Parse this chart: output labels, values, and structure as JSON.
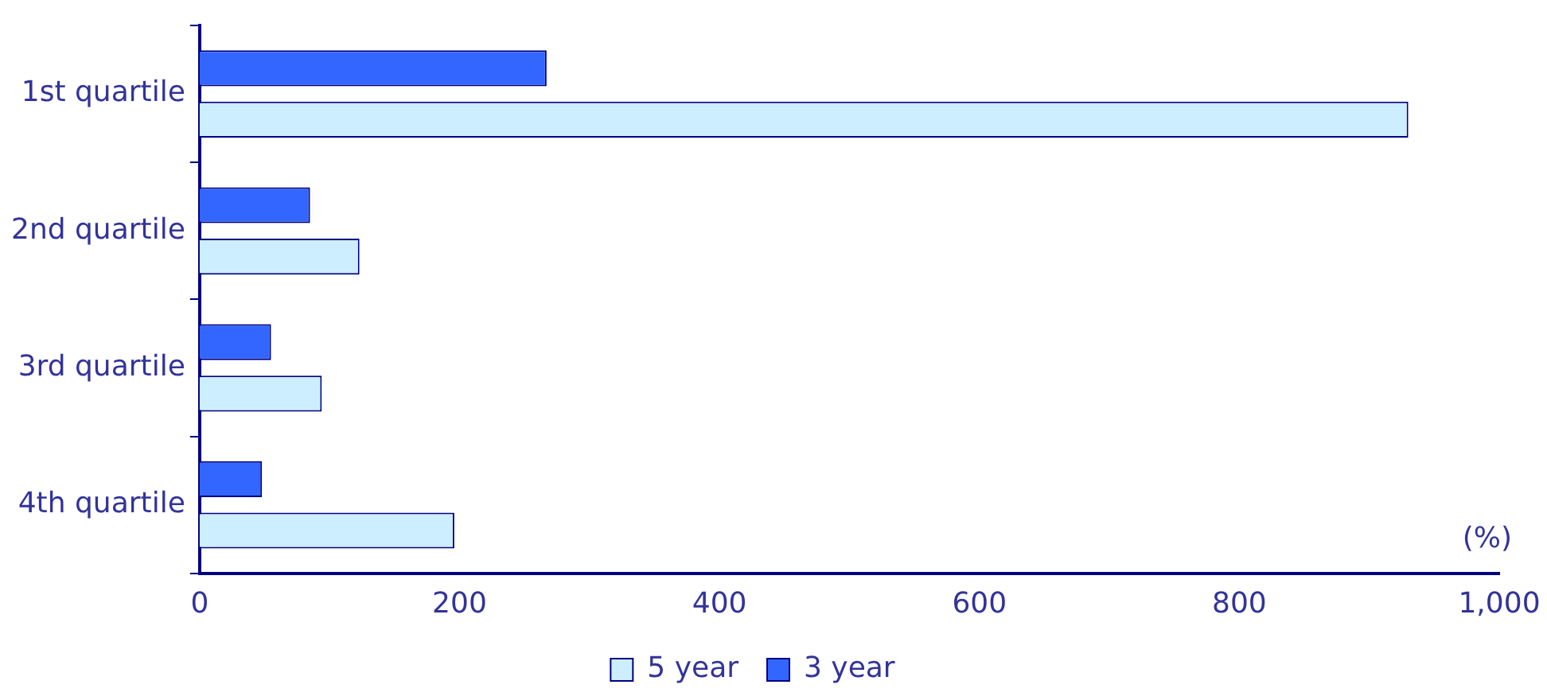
{
  "chart_data": {
    "type": "bar",
    "orientation": "horizontal",
    "categories": [
      "1st quartile",
      "2nd quartile",
      "3rd quartile",
      "4th quartile"
    ],
    "series": [
      {
        "name": "3 year",
        "color": "#3366ff",
        "values": [
          267,
          85,
          55,
          48
        ]
      },
      {
        "name": "5 year",
        "color": "#cceeff",
        "values": [
          930,
          123,
          94,
          196
        ]
      }
    ],
    "xlim": [
      0,
      1000
    ],
    "xticks": [
      0,
      200,
      400,
      600,
      800,
      {
        "value": 1000,
        "label": "1,000"
      }
    ],
    "grid": false,
    "legend": "bottom",
    "annotations": [
      "(%)"
    ]
  }
}
